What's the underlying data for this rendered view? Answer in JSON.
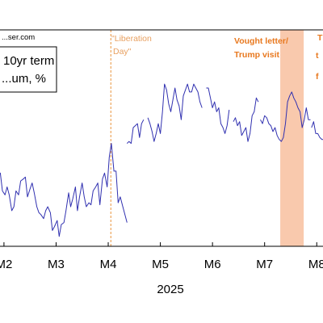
{
  "source_text": "...ser.com",
  "legend": {
    "line1": "10yr term",
    "line2": "...um, %"
  },
  "chart_data": {
    "type": "line",
    "title": "",
    "xlabel": "2025",
    "ylabel": "",
    "xlim": [
      1.8,
      8.12
    ],
    "ylim": [
      0,
      1
    ],
    "categories": [
      "M2",
      "M3",
      "M4",
      "M5",
      "M6",
      "M7",
      "M8"
    ],
    "tick_positions": [
      2,
      3,
      4,
      5,
      6,
      7,
      8
    ],
    "series": [
      {
        "color": "#3030b0",
        "x": [
          1.8,
          1.84,
          1.88,
          1.93,
          1.97,
          2.02,
          2.06,
          2.1,
          2.15,
          2.19,
          2.23,
          2.28,
          2.32,
          2.37,
          2.41,
          2.45,
          2.5,
          2.54,
          2.58,
          2.63,
          2.67,
          2.71,
          2.76,
          2.8,
          2.84,
          2.89,
          2.93,
          2.97,
          3.02,
          3.06,
          3.1,
          3.15,
          3.19,
          3.24,
          3.28,
          3.32,
          3.37,
          3.41,
          3.45,
          3.5,
          3.54,
          3.58,
          3.63,
          3.67,
          3.71,
          3.76,
          3.8,
          3.84,
          3.89,
          3.93,
          3.98,
          4.02,
          4.06,
          4.11,
          4.15,
          4.19,
          4.23,
          4.28,
          4.32,
          4.36
        ],
        "y": [
          0.44,
          0.38,
          0.35,
          0.37,
          0.28,
          0.26,
          0.3,
          0.26,
          0.18,
          0.2,
          0.28,
          0.26,
          0.33,
          0.34,
          0.35,
          0.25,
          0.29,
          0.32,
          0.27,
          0.2,
          0.17,
          0.16,
          0.14,
          0.18,
          0.2,
          0.17,
          0.08,
          0.1,
          0.13,
          0.05,
          0.11,
          0.12,
          0.18,
          0.27,
          0.2,
          0.24,
          0.3,
          0.18,
          0.25,
          0.32,
          0.25,
          0.2,
          0.22,
          0.21,
          0.28,
          0.3,
          0.32,
          0.21,
          0.34,
          0.37,
          0.3,
          0.45,
          0.52,
          0.38,
          0.38,
          0.22,
          0.25,
          0.2,
          0.16,
          0.12
        ]
      },
      {
        "color": "#3030b0",
        "x": [
          4.36,
          4.4,
          4.44,
          4.48,
          4.52,
          4.56,
          4.6,
          4.64,
          4.68
        ],
        "y": [
          0.52,
          0.53,
          0.52,
          0.6,
          0.61,
          0.62,
          0.55,
          0.62,
          0.64
        ]
      },
      {
        "color": "#3030b0",
        "x": [
          4.76,
          4.8,
          4.84,
          4.88,
          4.92,
          4.96,
          5.0,
          5.04,
          5.08,
          5.12,
          5.16,
          5.2,
          5.24,
          5.28,
          5.32,
          5.36,
          5.4,
          5.44,
          5.48,
          5.52,
          5.56,
          5.6,
          5.64,
          5.68,
          5.72,
          5.76,
          5.8
        ],
        "y": [
          0.65,
          0.62,
          0.58,
          0.53,
          0.57,
          0.62,
          0.57,
          0.68,
          0.82,
          0.79,
          0.72,
          0.68,
          0.74,
          0.8,
          0.74,
          0.71,
          0.64,
          0.76,
          0.79,
          0.82,
          0.78,
          0.78,
          0.82,
          0.8,
          0.78,
          0.73,
          0.7
        ]
      },
      {
        "color": "#3030b0",
        "x": [
          5.88,
          5.92,
          5.96,
          6.0,
          6.04,
          6.08,
          6.12,
          6.16,
          6.2,
          6.24,
          6.28,
          6.32
        ],
        "y": [
          0.8,
          0.8,
          0.75,
          0.7,
          0.73,
          0.68,
          0.7,
          0.62,
          0.6,
          0.57,
          0.61,
          0.69
        ]
      },
      {
        "color": "#3030b0",
        "x": [
          6.4,
          6.44,
          6.48,
          6.52,
          6.56,
          6.6,
          6.64,
          6.68,
          6.72,
          6.76,
          6.8,
          6.84,
          6.88
        ],
        "y": [
          0.63,
          0.65,
          0.61,
          0.63,
          0.56,
          0.58,
          0.6,
          0.53,
          0.57,
          0.66,
          0.68,
          0.75,
          0.73
        ]
      },
      {
        "color": "#3030b0",
        "x": [
          6.92,
          6.96,
          7.0,
          7.04,
          7.08,
          7.12,
          7.16,
          7.2,
          7.24,
          7.28,
          7.32,
          7.36,
          7.4,
          7.44,
          7.48,
          7.52,
          7.56,
          7.6,
          7.64,
          7.68,
          7.72,
          7.76,
          7.8,
          7.84,
          7.88
        ],
        "y": [
          0.64,
          0.62,
          0.66,
          0.65,
          0.62,
          0.61,
          0.58,
          0.6,
          0.56,
          0.54,
          0.53,
          0.55,
          0.62,
          0.73,
          0.76,
          0.78,
          0.75,
          0.73,
          0.7,
          0.68,
          0.6,
          0.64,
          0.7,
          0.64,
          0.64
        ]
      },
      {
        "color": "#3030b0",
        "x": [
          7.9,
          7.94,
          7.98,
          8.02,
          8.06,
          8.1,
          8.12
        ],
        "y": [
          0.6,
          0.63,
          0.57,
          0.57,
          0.55,
          0.54,
          0.54
        ]
      }
    ],
    "vertical_line": {
      "x": 4.05,
      "color": "#e8943c",
      "style": "dashed"
    },
    "shaded_region": {
      "x_start": 7.3,
      "x_end": 7.75,
      "color": "#f9c9ad"
    },
    "annotations": [
      {
        "text": "\"Liberation",
        "style": "orange"
      },
      {
        "text": "Day\"",
        "style": "orange"
      },
      {
        "text": "Vought letter/",
        "style": "bold"
      },
      {
        "text": "Trump visit",
        "style": "bold"
      },
      {
        "text": "T",
        "style": "bold"
      },
      {
        "text": "t",
        "style": "bold"
      },
      {
        "text": "f",
        "style": "bold"
      }
    ]
  }
}
